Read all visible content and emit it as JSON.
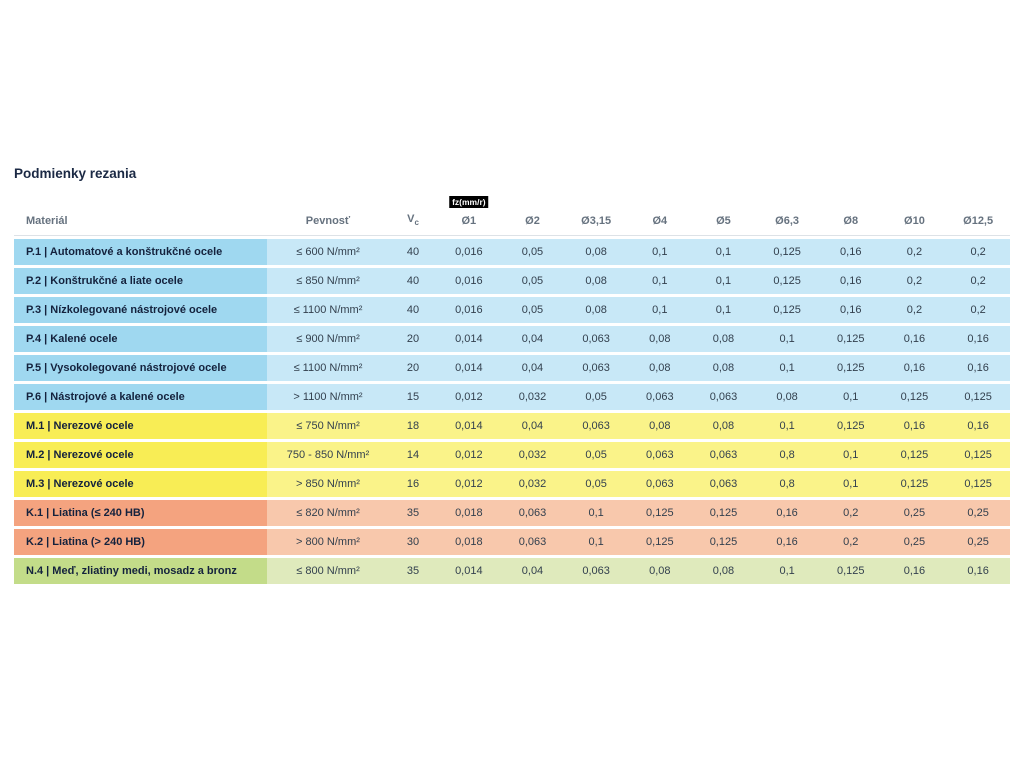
{
  "page": {
    "title": "Podmienky rezania"
  },
  "colors": {
    "blue_label": "#9fd8f0",
    "blue_data": "#c8e8f7",
    "yellow_label": "#f8ed55",
    "yellow_data": "#faf389",
    "orange_label": "#f4a37f",
    "orange_data": "#f8c8ac",
    "green_label": "#c3dc89",
    "green_data": "#dfeabc",
    "badge_bg": "#000000",
    "badge_text": "#ffffff"
  },
  "table": {
    "headers": {
      "material": "Materiál",
      "strength": "Pevnosť",
      "vc": "V",
      "vc_sub": "c",
      "fz_badge": "fz(mm/r)",
      "diameters": [
        "Ø1",
        "Ø2",
        "Ø3,15",
        "Ø4",
        "Ø5",
        "Ø6,3",
        "Ø8",
        "Ø10",
        "Ø12,5"
      ]
    },
    "rows": [
      {
        "group": "blue",
        "material": "P.1 | Automatové a konštrukčné ocele",
        "strength": "≤ 600 N/mm²",
        "vc": "40",
        "values": [
          "0,016",
          "0,05",
          "0,08",
          "0,1",
          "0,1",
          "0,125",
          "0,16",
          "0,2",
          "0,2"
        ]
      },
      {
        "group": "blue",
        "material": "P.2 | Konštrukčné a liate ocele",
        "strength": "≤ 850 N/mm²",
        "vc": "40",
        "values": [
          "0,016",
          "0,05",
          "0,08",
          "0,1",
          "0,1",
          "0,125",
          "0,16",
          "0,2",
          "0,2"
        ]
      },
      {
        "group": "blue",
        "material": "P.3 | Nízkolegované nástrojové ocele",
        "strength": "≤ 1100 N/mm²",
        "vc": "40",
        "values": [
          "0,016",
          "0,05",
          "0,08",
          "0,1",
          "0,1",
          "0,125",
          "0,16",
          "0,2",
          "0,2"
        ]
      },
      {
        "group": "blue",
        "material": "P.4 | Kalené ocele",
        "strength": "≤ 900 N/mm²",
        "vc": "20",
        "values": [
          "0,014",
          "0,04",
          "0,063",
          "0,08",
          "0,08",
          "0,1",
          "0,125",
          "0,16",
          "0,16"
        ]
      },
      {
        "group": "blue",
        "material": "P.5 | Vysokolegované nástrojové ocele",
        "strength": "≤ 1100 N/mm²",
        "vc": "20",
        "values": [
          "0,014",
          "0,04",
          "0,063",
          "0,08",
          "0,08",
          "0,1",
          "0,125",
          "0,16",
          "0,16"
        ]
      },
      {
        "group": "blue",
        "material": "P.6 | Nástrojové a kalené ocele",
        "strength": "> 1100 N/mm²",
        "vc": "15",
        "values": [
          "0,012",
          "0,032",
          "0,05",
          "0,063",
          "0,063",
          "0,08",
          "0,1",
          "0,125",
          "0,125"
        ]
      },
      {
        "group": "yellow",
        "material": "M.1 | Nerezové ocele",
        "strength": "≤ 750 N/mm²",
        "vc": "18",
        "values": [
          "0,014",
          "0,04",
          "0,063",
          "0,08",
          "0,08",
          "0,1",
          "0,125",
          "0,16",
          "0,16"
        ]
      },
      {
        "group": "yellow",
        "material": "M.2 | Nerezové ocele",
        "strength": "750 - 850 N/mm²",
        "vc": "14",
        "values": [
          "0,012",
          "0,032",
          "0,05",
          "0,063",
          "0,063",
          "0,8",
          "0,1",
          "0,125",
          "0,125"
        ]
      },
      {
        "group": "yellow",
        "material": "M.3 | Nerezové ocele",
        "strength": "> 850 N/mm²",
        "vc": "16",
        "values": [
          "0,012",
          "0,032",
          "0,05",
          "0,063",
          "0,063",
          "0,8",
          "0,1",
          "0,125",
          "0,125"
        ]
      },
      {
        "group": "orange",
        "material": "K.1 | Liatina (≤ 240 HB)",
        "strength": "≤ 820 N/mm²",
        "vc": "35",
        "values": [
          "0,018",
          "0,063",
          "0,1",
          "0,125",
          "0,125",
          "0,16",
          "0,2",
          "0,25",
          "0,25"
        ]
      },
      {
        "group": "orange",
        "material": "K.2 | Liatina (> 240 HB)",
        "strength": "> 800 N/mm²",
        "vc": "30",
        "values": [
          "0,018",
          "0,063",
          "0,1",
          "0,125",
          "0,125",
          "0,16",
          "0,2",
          "0,25",
          "0,25"
        ]
      },
      {
        "group": "green",
        "material": "N.4 | Meď, zliatiny medi, mosadz a bronz",
        "strength": "≤ 800 N/mm²",
        "vc": "35",
        "values": [
          "0,014",
          "0,04",
          "0,063",
          "0,08",
          "0,08",
          "0,1",
          "0,125",
          "0,16",
          "0,16"
        ]
      }
    ]
  }
}
